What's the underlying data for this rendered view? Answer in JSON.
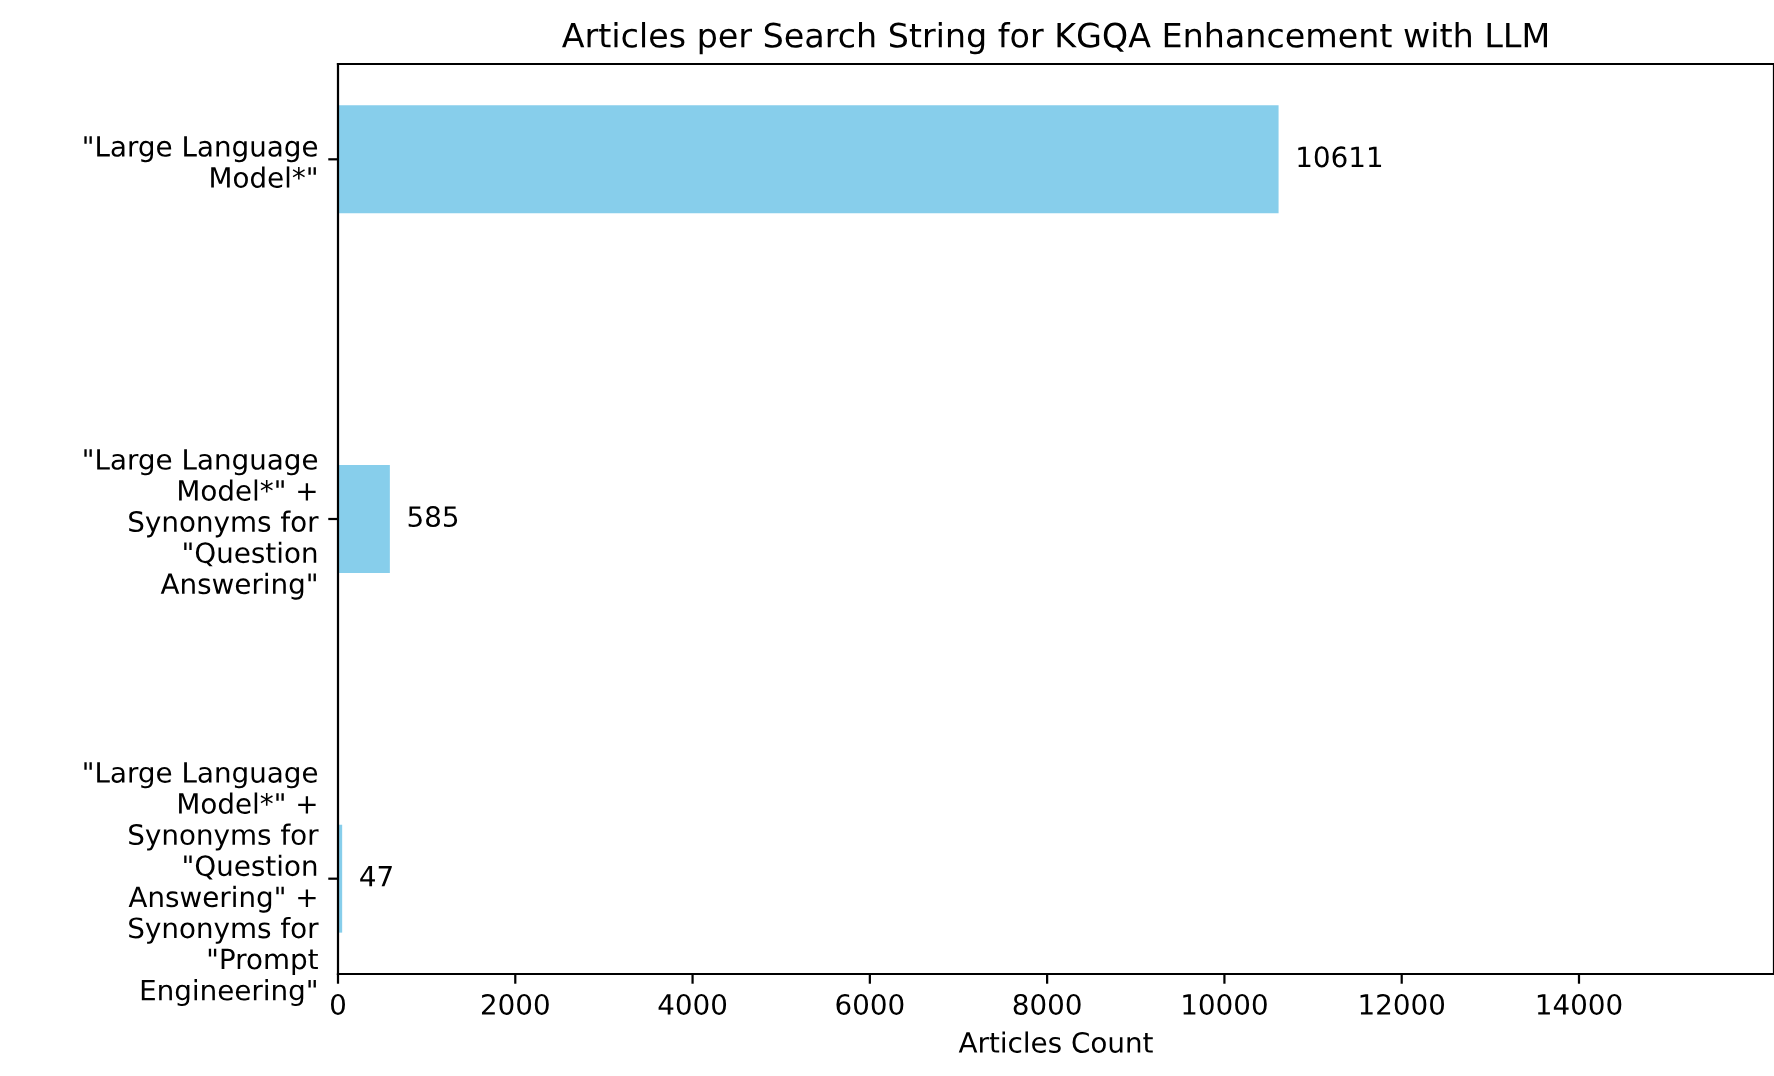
{
  "chart_data": {
    "type": "bar",
    "orientation": "horizontal",
    "title": "Articles per Search String for KGQA Enhancement with LLM",
    "xlabel": "Articles Count",
    "categories": [
      "\"Large Language\nModel*\"",
      "\"Large Language\nModel*\" +\nSynonyms for\n\"Question\nAnswering\"",
      "\"Large Language\nModel*\" +\nSynonyms for\n\"Question\nAnswering\" +\nSynonyms for\n\"Prompt\nEngineering\""
    ],
    "values": [
      10611,
      585,
      47
    ],
    "color": "#87ceeb",
    "xlim": [
      0,
      16200
    ],
    "xticks": [
      0,
      2000,
      4000,
      6000,
      8000,
      10000,
      12000,
      14000
    ],
    "data_labels": true,
    "grid": false
  }
}
